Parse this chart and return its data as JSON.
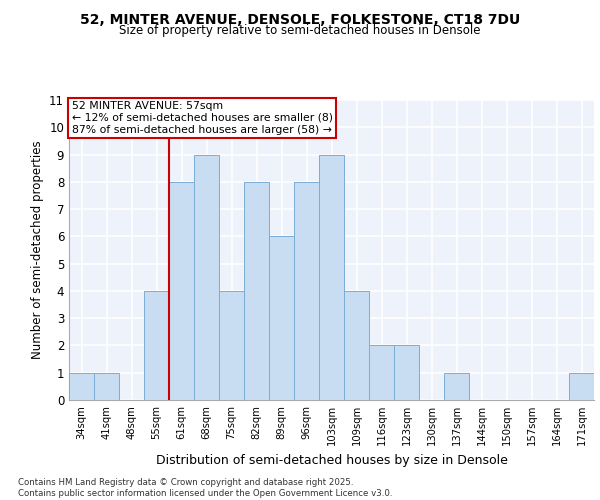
{
  "title1": "52, MINTER AVENUE, DENSOLE, FOLKESTONE, CT18 7DU",
  "title2": "Size of property relative to semi-detached houses in Densole",
  "xlabel": "Distribution of semi-detached houses by size in Densole",
  "ylabel": "Number of semi-detached properties",
  "categories": [
    "34sqm",
    "41sqm",
    "48sqm",
    "55sqm",
    "61sqm",
    "68sqm",
    "75sqm",
    "82sqm",
    "89sqm",
    "96sqm",
    "103sqm",
    "109sqm",
    "116sqm",
    "123sqm",
    "130sqm",
    "137sqm",
    "144sqm",
    "150sqm",
    "157sqm",
    "164sqm",
    "171sqm"
  ],
  "values": [
    1,
    1,
    0,
    4,
    8,
    9,
    4,
    8,
    6,
    8,
    9,
    4,
    2,
    2,
    0,
    1,
    0,
    0,
    0,
    0,
    1
  ],
  "bar_color": "#c8ddf2",
  "bar_edge_color": "#7badd4",
  "red_line_index": 3,
  "red_line_color": "#cc0000",
  "annotation_text": "52 MINTER AVENUE: 57sqm\n← 12% of semi-detached houses are smaller (8)\n87% of semi-detached houses are larger (58) →",
  "annotation_box_facecolor": "#ffffff",
  "annotation_box_edgecolor": "#cc0000",
  "background_color": "#eef2fb",
  "grid_color": "#ffffff",
  "ylim": [
    0,
    11
  ],
  "yticks": [
    0,
    1,
    2,
    3,
    4,
    5,
    6,
    7,
    8,
    9,
    10,
    11
  ],
  "footer_line1": "Contains HM Land Registry data © Crown copyright and database right 2025.",
  "footer_line2": "Contains public sector information licensed under the Open Government Licence v3.0."
}
